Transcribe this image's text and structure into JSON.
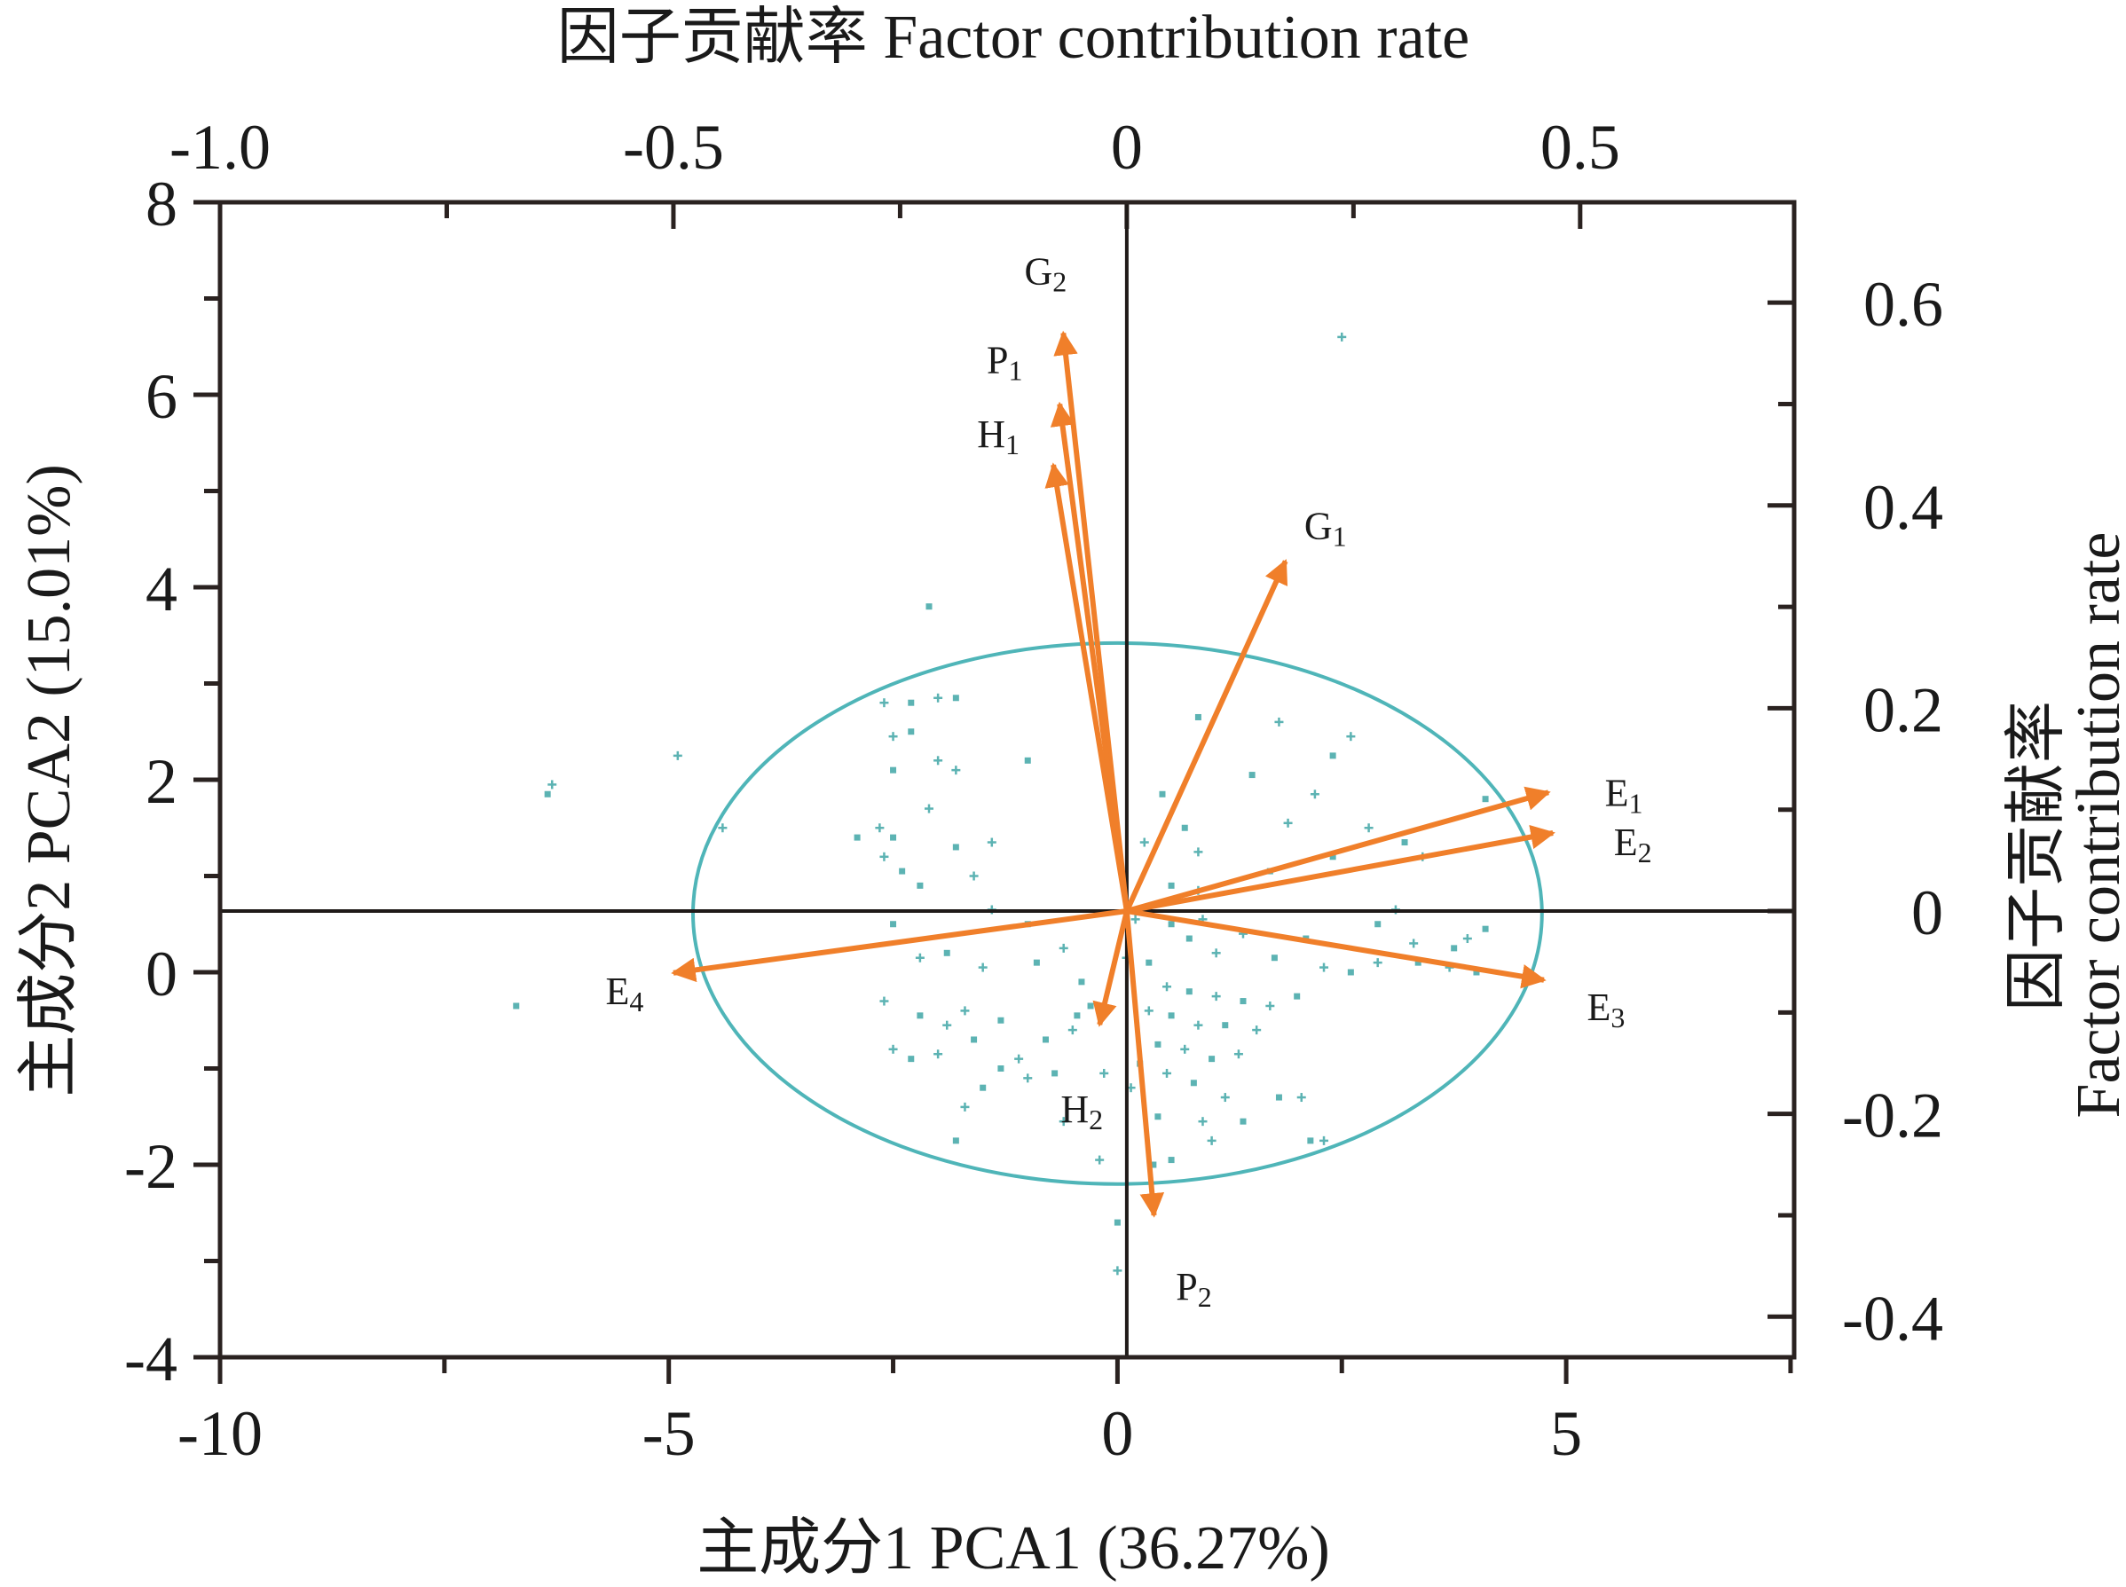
{
  "chart_data": {
    "type": "scatter",
    "subtype": "pca-biplot",
    "title": "",
    "xlabel": "主成分1 PCA1 (36.27%)",
    "ylabel": "主成分2 PCA2 (15.01%)",
    "top_xlabel": "因子贡献率 Factor contribution rate",
    "right_ylabel_cn": "因子贡献率",
    "right_ylabel_en": "Factor contribution rate",
    "xlim": [
      -10,
      7.54
    ],
    "ylim": [
      -4,
      8
    ],
    "top_xlim": [
      -1.0,
      0.736
    ],
    "right_ylim": [
      -0.44,
      0.699
    ],
    "x_ticks": [
      {
        "value": -10,
        "label": "-10"
      },
      {
        "value": -5,
        "label": "-5"
      },
      {
        "value": 0,
        "label": "0"
      },
      {
        "value": 5,
        "label": "5"
      }
    ],
    "y_ticks": [
      {
        "value": 8,
        "label": "8"
      },
      {
        "value": 6,
        "label": "6"
      },
      {
        "value": 4,
        "label": "4"
      },
      {
        "value": 2,
        "label": "2"
      },
      {
        "value": 0,
        "label": "0"
      },
      {
        "value": -2,
        "label": "-2"
      },
      {
        "value": -4,
        "label": "-4"
      }
    ],
    "top_ticks": [
      {
        "value": -1.0,
        "label": "-1.0"
      },
      {
        "value": -0.5,
        "label": "-0.5"
      },
      {
        "value": 0,
        "label": "0"
      },
      {
        "value": 0.5,
        "label": "0.5"
      }
    ],
    "right_ticks": [
      {
        "value": 0.6,
        "label": "0.6"
      },
      {
        "value": 0.4,
        "label": "0.4"
      },
      {
        "value": 0.2,
        "label": "0.2"
      },
      {
        "value": 0,
        "label": "0"
      },
      {
        "value": -0.2,
        "label": "-0.2"
      },
      {
        "value": -0.4,
        "label": "-0.4"
      }
    ],
    "loadings": [
      {
        "name": "G",
        "sub": "2",
        "x": -0.07,
        "y": 0.57
      },
      {
        "name": "P",
        "sub": "1",
        "x": -0.074,
        "y": 0.5
      },
      {
        "name": "H",
        "sub": "1",
        "x": -0.081,
        "y": 0.44
      },
      {
        "name": "G",
        "sub": "1",
        "x": 0.175,
        "y": 0.345
      },
      {
        "name": "E",
        "sub": "1",
        "x": 0.465,
        "y": 0.117
      },
      {
        "name": "E",
        "sub": "2",
        "x": 0.47,
        "y": 0.077
      },
      {
        "name": "E",
        "sub": "3",
        "x": 0.46,
        "y": -0.068
      },
      {
        "name": "E",
        "sub": "4",
        "x": -0.5,
        "y": -0.061
      },
      {
        "name": "H",
        "sub": "2",
        "x": -0.03,
        "y": -0.112
      },
      {
        "name": "P",
        "sub": "2",
        "x": 0.03,
        "y": -0.3
      }
    ],
    "ellipse": {
      "cx": 0,
      "cy": 0.61,
      "rx": 4.73,
      "ry": 2.81
    },
    "scores": [
      [
        2.5,
        6.6
      ],
      [
        -2.1,
        3.8
      ],
      [
        -6.3,
        1.95
      ],
      [
        -6.35,
        1.85
      ],
      [
        -4.9,
        2.25
      ],
      [
        -6.7,
        -0.35
      ],
      [
        -4.4,
        1.5
      ],
      [
        -2.9,
        1.4
      ],
      [
        -2.6,
        2.8
      ],
      [
        -2.3,
        2.8
      ],
      [
        -2.0,
        2.85
      ],
      [
        -1.8,
        2.85
      ],
      [
        -2.5,
        2.45
      ],
      [
        -2.3,
        2.5
      ],
      [
        -1.8,
        2.1
      ],
      [
        -2.5,
        2.1
      ],
      [
        -2.0,
        2.2
      ],
      [
        -1.0,
        2.2
      ],
      [
        -2.65,
        1.5
      ],
      [
        -2.5,
        1.4
      ],
      [
        -2.6,
        1.2
      ],
      [
        -2.4,
        1.05
      ],
      [
        -2.1,
        1.7
      ],
      [
        -1.8,
        1.3
      ],
      [
        -1.4,
        1.35
      ],
      [
        -2.2,
        0.9
      ],
      [
        -1.6,
        1.0
      ],
      [
        -2.5,
        0.5
      ],
      [
        -1.4,
        0.65
      ],
      [
        -1.0,
        0.5
      ],
      [
        -2.6,
        -0.3
      ],
      [
        -2.2,
        -0.45
      ],
      [
        -1.7,
        -0.4
      ],
      [
        -1.3,
        -0.5
      ],
      [
        -2.5,
        -0.8
      ],
      [
        -2.3,
        -0.9
      ],
      [
        -1.9,
        -0.55
      ],
      [
        -1.6,
        -0.7
      ],
      [
        -1.1,
        -0.9
      ],
      [
        -0.8,
        -0.7
      ],
      [
        -0.5,
        -0.6
      ],
      [
        -0.3,
        -0.35
      ],
      [
        -2.2,
        0.15
      ],
      [
        -1.9,
        0.2
      ],
      [
        -1.5,
        0.05
      ],
      [
        -0.9,
        0.1
      ],
      [
        -0.6,
        0.25
      ],
      [
        -0.4,
        -0.1
      ],
      [
        -1.0,
        -1.1
      ],
      [
        -0.7,
        -1.05
      ],
      [
        -1.7,
        -1.4
      ],
      [
        -1.8,
        -1.75
      ],
      [
        -0.6,
        -1.55
      ],
      [
        -1.3,
        -1.0
      ],
      [
        -2.0,
        -0.85
      ],
      [
        -1.5,
        -1.2
      ],
      [
        -0.15,
        -1.05
      ],
      [
        -0.45,
        -0.45
      ],
      [
        -0.2,
        -1.95
      ],
      [
        0.0,
        -2.6
      ],
      [
        0.0,
        -3.1
      ],
      [
        0.9,
        2.65
      ],
      [
        1.8,
        2.6
      ],
      [
        2.4,
        2.25
      ],
      [
        2.6,
        2.45
      ],
      [
        1.5,
        2.05
      ],
      [
        2.2,
        1.85
      ],
      [
        0.5,
        1.85
      ],
      [
        0.3,
        1.35
      ],
      [
        0.75,
        1.5
      ],
      [
        0.9,
        1.25
      ],
      [
        0.6,
        0.9
      ],
      [
        0.9,
        0.85
      ],
      [
        1.7,
        1.05
      ],
      [
        1.9,
        1.55
      ],
      [
        2.4,
        1.2
      ],
      [
        2.8,
        1.5
      ],
      [
        3.2,
        1.35
      ],
      [
        3.4,
        1.2
      ],
      [
        4.1,
        1.8
      ],
      [
        0.2,
        0.55
      ],
      [
        0.8,
        0.35
      ],
      [
        0.95,
        0.55
      ],
      [
        0.6,
        0.5
      ],
      [
        1.4,
        0.4
      ],
      [
        2.1,
        0.35
      ],
      [
        3.1,
        0.65
      ],
      [
        2.9,
        0.5
      ],
      [
        3.3,
        0.3
      ],
      [
        3.75,
        0.25
      ],
      [
        3.9,
        0.35
      ],
      [
        4.1,
        0.45
      ],
      [
        0.1,
        0.15
      ],
      [
        0.35,
        0.1
      ],
      [
        1.1,
        0.2
      ],
      [
        1.75,
        0.15
      ],
      [
        2.3,
        0.05
      ],
      [
        2.6,
        0.0
      ],
      [
        2.9,
        0.1
      ],
      [
        3.35,
        0.1
      ],
      [
        3.7,
        0.05
      ],
      [
        4.0,
        0.0
      ],
      [
        0.55,
        -0.15
      ],
      [
        0.8,
        -0.2
      ],
      [
        1.1,
        -0.25
      ],
      [
        1.4,
        -0.3
      ],
      [
        1.7,
        -0.35
      ],
      [
        2.0,
        -0.25
      ],
      [
        0.35,
        -0.4
      ],
      [
        0.6,
        -0.45
      ],
      [
        0.9,
        -0.55
      ],
      [
        1.2,
        -0.55
      ],
      [
        1.55,
        -0.6
      ],
      [
        0.45,
        -0.75
      ],
      [
        0.75,
        -0.8
      ],
      [
        1.05,
        -0.9
      ],
      [
        1.35,
        -0.85
      ],
      [
        0.25,
        -0.95
      ],
      [
        0.55,
        -1.05
      ],
      [
        0.85,
        -1.15
      ],
      [
        1.2,
        -1.3
      ],
      [
        1.8,
        -1.3
      ],
      [
        2.05,
        -1.3
      ],
      [
        2.15,
        -1.75
      ],
      [
        2.3,
        -1.75
      ],
      [
        0.45,
        -1.5
      ],
      [
        0.95,
        -1.55
      ],
      [
        1.4,
        -1.55
      ],
      [
        0.15,
        -1.2
      ],
      [
        0.4,
        -2.0
      ],
      [
        1.05,
        -1.75
      ],
      [
        0.6,
        -1.95
      ]
    ]
  },
  "colors": {
    "arrow": "#f07f2a",
    "ellipse": "#4fb5b8",
    "points": "#5cb3b3",
    "axis": "#2a2220"
  }
}
